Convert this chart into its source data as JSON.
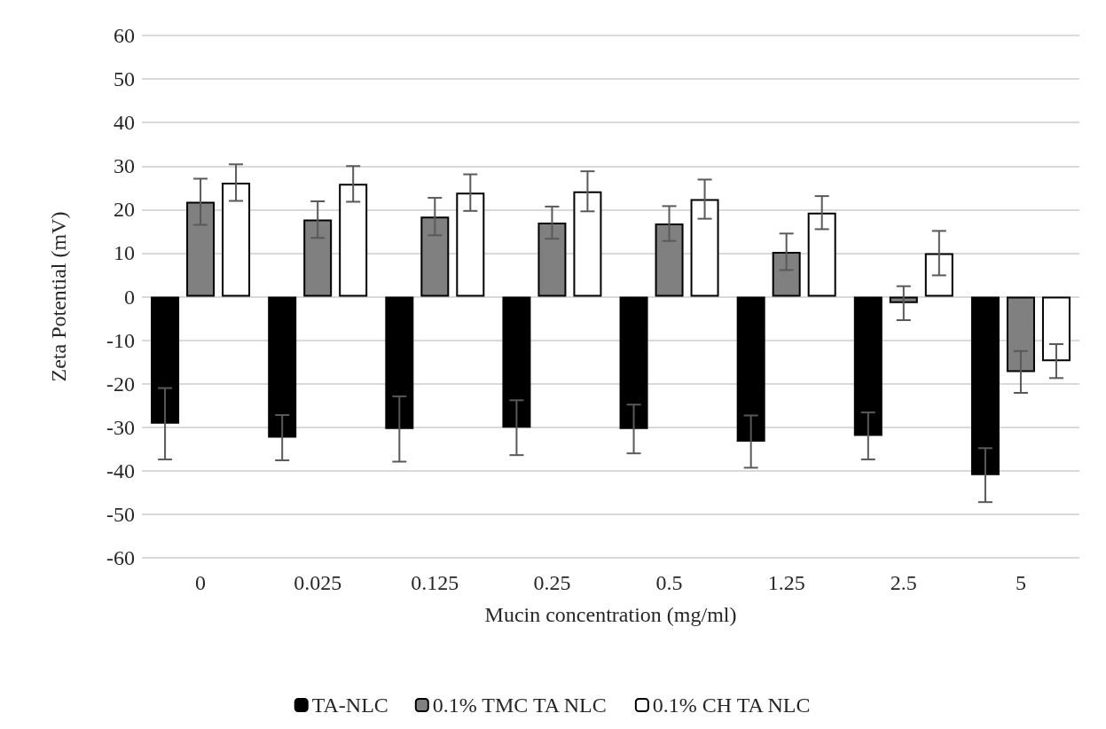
{
  "chart_data": {
    "type": "bar",
    "xlabel": "Mucin concentration (mg/ml)",
    "ylabel": "Zeta Potential (mV)",
    "categories": [
      "0",
      "0.025",
      "0.125",
      "0.25",
      "0.5",
      "1.25",
      "2.5",
      "5"
    ],
    "series": [
      {
        "name": "TA-NLC",
        "color": "#000000",
        "values": [
          -29.2,
          -32.4,
          -30.4,
          -30.1,
          -30.4,
          -33.3,
          -32.0,
          -41.0
        ],
        "errors": [
          8.2,
          5.2,
          7.5,
          6.3,
          5.6,
          6.0,
          5.4,
          6.2
        ]
      },
      {
        "name": "0.1% TMC TA NLC",
        "color": "#808080",
        "values": [
          21.8,
          17.7,
          18.4,
          17.0,
          16.8,
          10.3,
          -1.5,
          -17.3
        ],
        "errors": [
          5.3,
          4.2,
          4.3,
          3.7,
          4.0,
          4.2,
          3.9,
          4.8
        ]
      },
      {
        "name": "0.1% CH TA NLC",
        "color": "#ffffff",
        "values": [
          26.2,
          25.9,
          23.9,
          24.2,
          22.4,
          19.3,
          10.0,
          -14.8
        ],
        "errors": [
          4.2,
          4.1,
          4.2,
          4.6,
          4.5,
          3.8,
          5.1,
          3.9
        ]
      }
    ],
    "ylim": [
      -60,
      60
    ],
    "yticks": [
      -60,
      -50,
      -40,
      -30,
      -20,
      -10,
      0,
      10,
      20,
      30,
      40,
      50,
      60
    ],
    "grid": "y",
    "legend": "bottom"
  }
}
